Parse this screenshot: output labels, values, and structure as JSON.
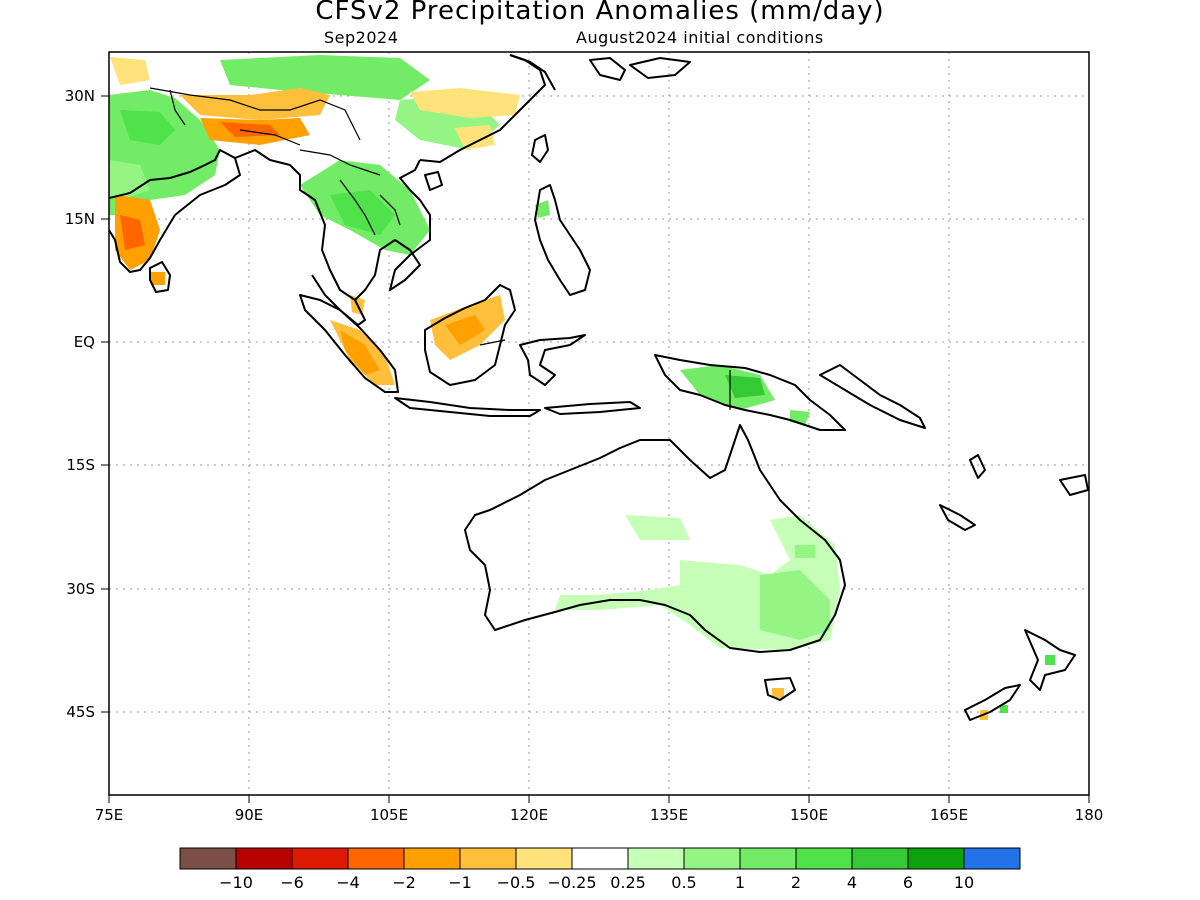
{
  "title": "CFSv2 Precipitation Anomalies (mm/day)",
  "valid_month": "Sep2024",
  "initial_conditions": "August2024 initial conditions",
  "lon_ticks": [
    "75E",
    "90E",
    "105E",
    "120E",
    "135E",
    "150E",
    "165E",
    "180"
  ],
  "lat_ticks": [
    "30N",
    "15N",
    "EQ",
    "15S",
    "30S",
    "45S"
  ],
  "colorbar": {
    "colors": [
      "#7b4f45",
      "#b80000",
      "#dd1a00",
      "#ff6600",
      "#ff9f00",
      "#ffbf3a",
      "#ffe27a",
      "#ffffff",
      "#c6ffb8",
      "#94f585",
      "#72ec66",
      "#4fe24a",
      "#35c935",
      "#0ea10e",
      "#2173e7"
    ],
    "labels": [
      "-10",
      "-6",
      "-4",
      "-2",
      "-1",
      "-0.5",
      "-0.25",
      "0.25",
      "0.5",
      "1",
      "2",
      "4",
      "6",
      "10"
    ]
  }
}
